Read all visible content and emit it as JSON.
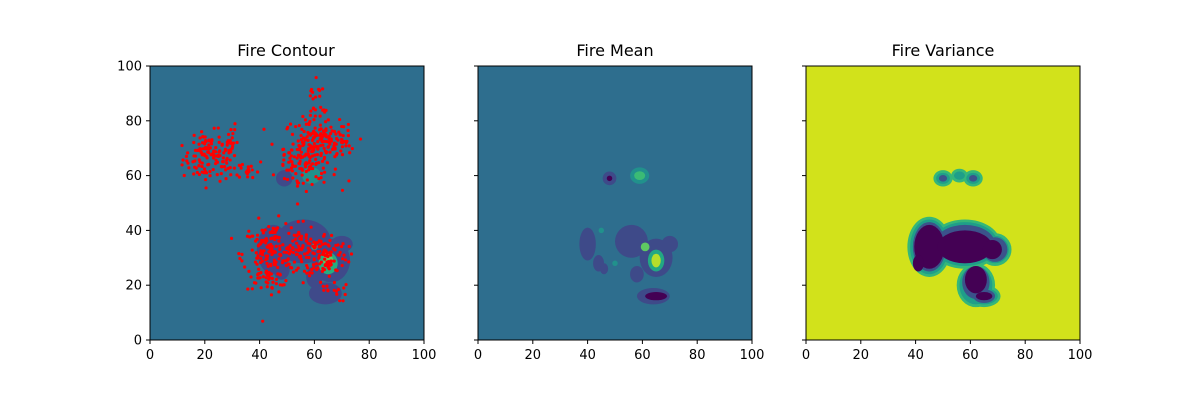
{
  "chart_data": [
    {
      "type": "contour",
      "title": "Fire Contour",
      "xlim": [
        0,
        100
      ],
      "ylim": [
        0,
        100
      ],
      "xticks": [
        0,
        20,
        40,
        60,
        80,
        100
      ],
      "yticks": [
        0,
        20,
        40,
        60,
        80,
        100
      ],
      "show_ytick_labels": true,
      "background_color": "#2e6e8e",
      "scatter_color": "#ff0000",
      "contour_blobs": [
        {
          "cx": 45,
          "cy": 33,
          "rx": 6,
          "ry": 9,
          "color": "#3f4a8a"
        },
        {
          "cx": 48,
          "cy": 26,
          "rx": 3,
          "ry": 4,
          "color": "#3f4a8a"
        },
        {
          "cx": 56,
          "cy": 36,
          "rx": 10,
          "ry": 8,
          "color": "#3f4a8a"
        },
        {
          "cx": 66,
          "cy": 29,
          "rx": 7,
          "ry": 8,
          "color": "#3f4a8a"
        },
        {
          "cx": 70,
          "cy": 35,
          "rx": 4,
          "ry": 3,
          "color": "#3f4a8a"
        },
        {
          "cx": 64,
          "cy": 17,
          "rx": 6,
          "ry": 4,
          "color": "#3f4a8a"
        },
        {
          "cx": 60,
          "cy": 23,
          "rx": 3,
          "ry": 4,
          "color": "#3f4a8a"
        },
        {
          "cx": 49,
          "cy": 59,
          "rx": 3,
          "ry": 3,
          "color": "#3f4a8a"
        },
        {
          "cx": 59,
          "cy": 60,
          "rx": 3.5,
          "ry": 3,
          "color": "#21918c"
        },
        {
          "cx": 65,
          "cy": 28,
          "rx": 3.5,
          "ry": 4,
          "color": "#27ad81"
        },
        {
          "cx": 65,
          "cy": 29,
          "rx": 1.8,
          "ry": 2.5,
          "color": "#5ec962"
        },
        {
          "cx": 60,
          "cy": 34,
          "rx": 1.2,
          "ry": 1.2,
          "color": "#27ad81"
        }
      ],
      "scatter_clusters": [
        {
          "cx": 22,
          "cy": 66,
          "sx": 5,
          "sy": 4,
          "n": 110
        },
        {
          "cx": 28,
          "cy": 73,
          "sx": 2,
          "sy": 4,
          "n": 25
        },
        {
          "cx": 20,
          "cy": 72,
          "sx": 2,
          "sy": 2,
          "n": 15
        },
        {
          "cx": 36,
          "cy": 62,
          "sx": 3,
          "sy": 2,
          "n": 20
        },
        {
          "cx": 59,
          "cy": 70,
          "sx": 5,
          "sy": 6,
          "n": 190
        },
        {
          "cx": 66,
          "cy": 74,
          "sx": 4,
          "sy": 3,
          "n": 40
        },
        {
          "cx": 53,
          "cy": 63,
          "sx": 3,
          "sy": 3,
          "n": 25
        },
        {
          "cx": 60,
          "cy": 86,
          "sx": 2,
          "sy": 4,
          "n": 15
        },
        {
          "cx": 72,
          "cy": 72,
          "sx": 2,
          "sy": 2,
          "n": 12
        },
        {
          "cx": 44,
          "cy": 31,
          "sx": 5,
          "sy": 6,
          "n": 170
        },
        {
          "cx": 64,
          "cy": 31,
          "sx": 4,
          "sy": 4,
          "n": 110
        },
        {
          "cx": 54,
          "cy": 34,
          "sx": 3,
          "sy": 4,
          "n": 40
        },
        {
          "cx": 66,
          "cy": 18,
          "sx": 3,
          "sy": 2,
          "n": 15
        },
        {
          "cx": 43,
          "cy": 22,
          "sx": 2,
          "sy": 2,
          "n": 12
        }
      ]
    },
    {
      "type": "contour",
      "title": "Fire Mean",
      "xlim": [
        0,
        100
      ],
      "ylim": [
        0,
        100
      ],
      "xticks": [
        0,
        20,
        40,
        60,
        80,
        100
      ],
      "yticks": [
        0,
        20,
        40,
        60,
        80,
        100
      ],
      "show_ytick_labels": false,
      "background_color": "#2e6e8e",
      "contour_blobs": [
        {
          "cx": 40,
          "cy": 35,
          "rx": 3,
          "ry": 6,
          "color": "#3e4a89"
        },
        {
          "cx": 44,
          "cy": 28,
          "rx": 2,
          "ry": 3,
          "color": "#3e4a89"
        },
        {
          "cx": 46,
          "cy": 26,
          "rx": 1.5,
          "ry": 2,
          "color": "#3e4a89"
        },
        {
          "cx": 56,
          "cy": 36,
          "rx": 6,
          "ry": 6,
          "color": "#3e4a89"
        },
        {
          "cx": 65,
          "cy": 30,
          "rx": 6,
          "ry": 7,
          "color": "#3e4a89"
        },
        {
          "cx": 70,
          "cy": 35,
          "rx": 3,
          "ry": 3,
          "color": "#3e4a89"
        },
        {
          "cx": 64,
          "cy": 16,
          "rx": 6,
          "ry": 3,
          "color": "#3e4a89"
        },
        {
          "cx": 58,
          "cy": 24,
          "rx": 2.5,
          "ry": 3,
          "color": "#3e4a89"
        },
        {
          "cx": 48,
          "cy": 59,
          "rx": 2.5,
          "ry": 2.5,
          "color": "#3e4a89"
        },
        {
          "cx": 48,
          "cy": 59,
          "rx": 1,
          "ry": 1,
          "color": "#440154"
        },
        {
          "cx": 65,
          "cy": 16,
          "rx": 4,
          "ry": 1.5,
          "color": "#440154"
        },
        {
          "cx": 59,
          "cy": 60,
          "rx": 3.5,
          "ry": 3,
          "color": "#21918c"
        },
        {
          "cx": 59,
          "cy": 60,
          "rx": 2,
          "ry": 1.6,
          "color": "#3bbb75"
        },
        {
          "cx": 65,
          "cy": 29,
          "rx": 3,
          "ry": 4,
          "color": "#22a884"
        },
        {
          "cx": 65,
          "cy": 29,
          "rx": 1.7,
          "ry": 2.5,
          "color": "#b5de2b"
        },
        {
          "cx": 61,
          "cy": 34,
          "rx": 1.6,
          "ry": 1.6,
          "color": "#5ec962"
        },
        {
          "cx": 45,
          "cy": 40,
          "rx": 1,
          "ry": 1,
          "color": "#21918c"
        },
        {
          "cx": 50,
          "cy": 28,
          "rx": 1,
          "ry": 1,
          "color": "#21918c"
        }
      ]
    },
    {
      "type": "contour",
      "title": "Fire Variance",
      "xlim": [
        0,
        100
      ],
      "ylim": [
        0,
        100
      ],
      "xticks": [
        0,
        20,
        40,
        60,
        80,
        100
      ],
      "yticks": [
        0,
        20,
        40,
        60,
        80,
        100
      ],
      "show_ytick_labels": false,
      "background_color": "#d2e21b",
      "contour_blobs": [
        {
          "cx": 45,
          "cy": 34,
          "rx": 8,
          "ry": 11,
          "color": "#35b779"
        },
        {
          "cx": 58,
          "cy": 35,
          "rx": 13,
          "ry": 9,
          "color": "#35b779"
        },
        {
          "cx": 69,
          "cy": 33,
          "rx": 6,
          "ry": 6,
          "color": "#35b779"
        },
        {
          "cx": 62,
          "cy": 20,
          "rx": 7,
          "ry": 8,
          "color": "#35b779"
        },
        {
          "cx": 65,
          "cy": 16,
          "rx": 6,
          "ry": 4,
          "color": "#35b779"
        },
        {
          "cx": 50,
          "cy": 59,
          "rx": 3.5,
          "ry": 3,
          "color": "#35b779"
        },
        {
          "cx": 56,
          "cy": 60,
          "rx": 3,
          "ry": 2.5,
          "color": "#35b779"
        },
        {
          "cx": 61,
          "cy": 59,
          "rx": 3.5,
          "ry": 3,
          "color": "#35b779"
        },
        {
          "cx": 45,
          "cy": 34,
          "rx": 7,
          "ry": 10,
          "color": "#1f9e89"
        },
        {
          "cx": 58,
          "cy": 35,
          "rx": 12,
          "ry": 8,
          "color": "#1f9e89"
        },
        {
          "cx": 69,
          "cy": 33,
          "rx": 5,
          "ry": 5,
          "color": "#1f9e89"
        },
        {
          "cx": 62,
          "cy": 20,
          "rx": 6,
          "ry": 7,
          "color": "#1f9e89"
        },
        {
          "cx": 65,
          "cy": 16,
          "rx": 5,
          "ry": 3,
          "color": "#1f9e89"
        },
        {
          "cx": 50,
          "cy": 59,
          "rx": 2.5,
          "ry": 2,
          "color": "#1f9e89"
        },
        {
          "cx": 56,
          "cy": 60,
          "rx": 2,
          "ry": 1.5,
          "color": "#1f9e89"
        },
        {
          "cx": 61,
          "cy": 59,
          "rx": 2.5,
          "ry": 2,
          "color": "#1f9e89"
        },
        {
          "cx": 45,
          "cy": 34,
          "rx": 6,
          "ry": 9,
          "color": "#3b528b"
        },
        {
          "cx": 58,
          "cy": 35,
          "rx": 11,
          "ry": 7,
          "color": "#3b528b"
        },
        {
          "cx": 69,
          "cy": 33,
          "rx": 4.5,
          "ry": 4.5,
          "color": "#3b528b"
        },
        {
          "cx": 62,
          "cy": 21,
          "rx": 5,
          "ry": 6,
          "color": "#3b528b"
        },
        {
          "cx": 65,
          "cy": 16,
          "rx": 4,
          "ry": 2.5,
          "color": "#3b528b"
        },
        {
          "cx": 50,
          "cy": 59,
          "rx": 1.5,
          "ry": 1.2,
          "color": "#3b528b"
        },
        {
          "cx": 61,
          "cy": 59,
          "rx": 1.5,
          "ry": 1.2,
          "color": "#3b528b"
        },
        {
          "cx": 45,
          "cy": 34,
          "rx": 5.5,
          "ry": 8,
          "color": "#440154"
        },
        {
          "cx": 58,
          "cy": 34,
          "rx": 10,
          "ry": 6,
          "color": "#440154"
        },
        {
          "cx": 68,
          "cy": 33,
          "rx": 3.5,
          "ry": 3.5,
          "color": "#440154"
        },
        {
          "cx": 62,
          "cy": 22,
          "rx": 4,
          "ry": 5,
          "color": "#440154"
        },
        {
          "cx": 65,
          "cy": 16,
          "rx": 3,
          "ry": 1.5,
          "color": "#440154"
        },
        {
          "cx": 41,
          "cy": 28,
          "rx": 2,
          "ry": 3,
          "color": "#440154"
        }
      ]
    }
  ]
}
